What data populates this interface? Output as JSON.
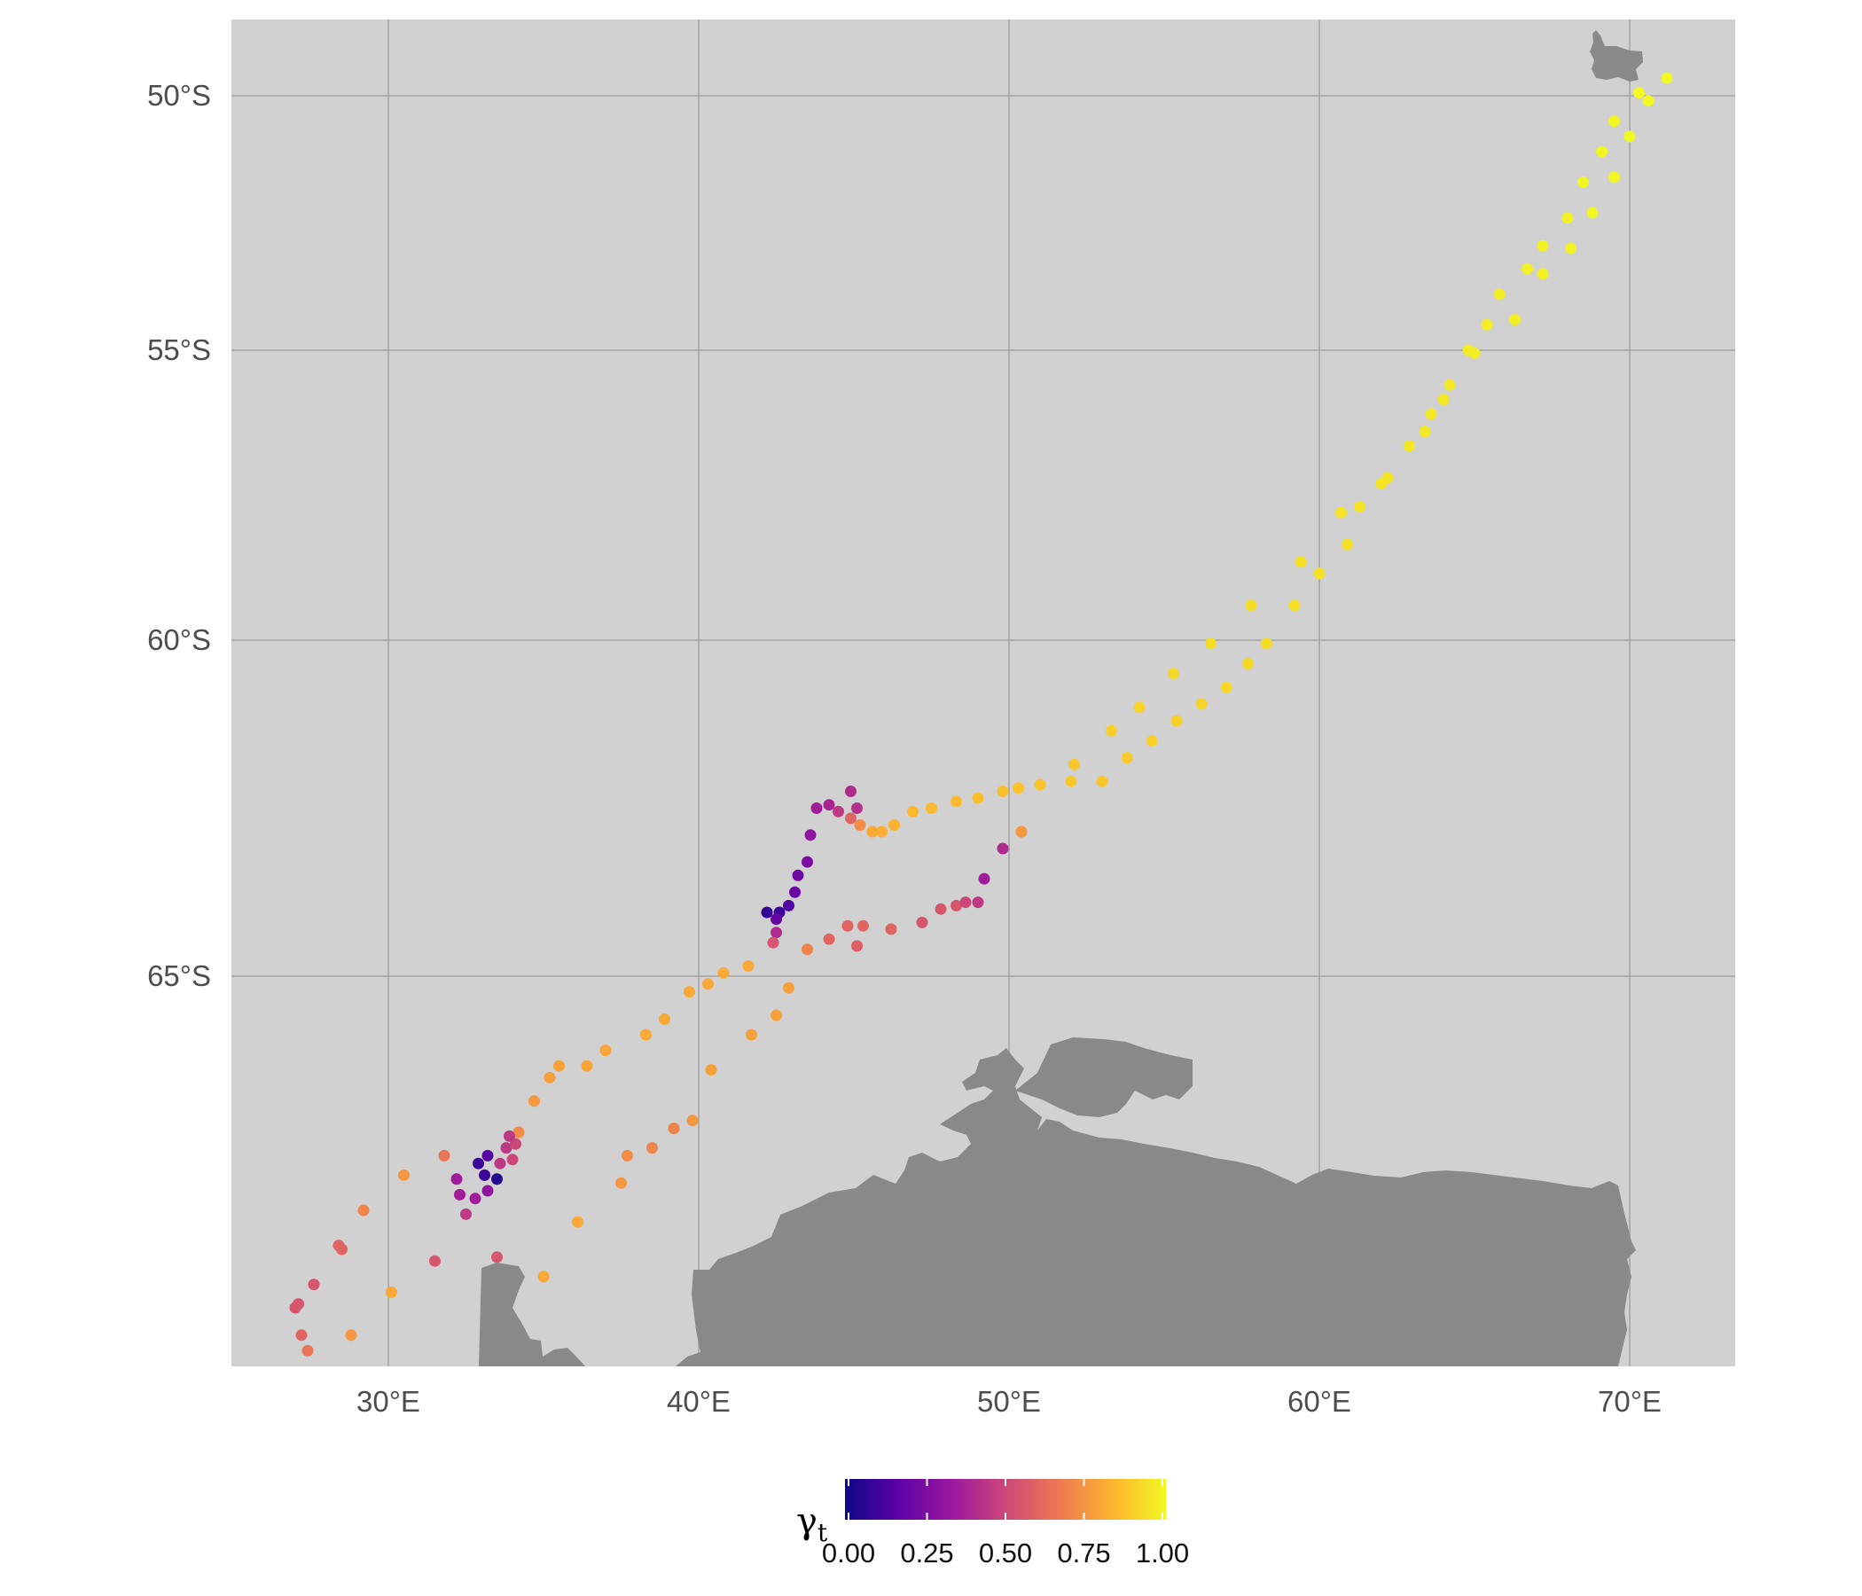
{
  "map": {
    "panel_background": "#d1d1d1",
    "land_color": "#898989",
    "grid_color": "#9c9c9c",
    "lon_ticks": [
      {
        "value": 30,
        "label": "30°E"
      },
      {
        "value": 40,
        "label": "40°E"
      },
      {
        "value": 50,
        "label": "50°E"
      },
      {
        "value": 60,
        "label": "60°E"
      },
      {
        "value": 70,
        "label": "70°E"
      }
    ],
    "lat_ticks": [
      {
        "value": -50,
        "label": "50°S"
      },
      {
        "value": -55,
        "label": "55°S"
      },
      {
        "value": -60,
        "label": "60°S"
      },
      {
        "value": -65,
        "label": "65°S"
      }
    ],
    "land_features": [
      "antarctica-coast",
      "kerguelen-islands"
    ]
  },
  "legend": {
    "title_symbol": "γ",
    "title_subscript": "t",
    "labels": [
      "0.00",
      "0.25",
      "0.50",
      "0.75",
      "1.00"
    ],
    "range": [
      0,
      1
    ],
    "palette": [
      "#0d0887",
      "#5c01a6",
      "#9c179e",
      "#cc4778",
      "#ed7953",
      "#fdb42f",
      "#f0f921"
    ]
  },
  "chart_data": {
    "type": "scatter",
    "xlabel": "",
    "ylabel": "",
    "color_variable": "γt",
    "points": [
      [
        71.2,
        -49.7,
        1.0
      ],
      [
        70.6,
        -50.1,
        1.0
      ],
      [
        70.3,
        -49.95,
        1.0
      ],
      [
        70.0,
        -50.8,
        1.0
      ],
      [
        69.5,
        -50.5,
        0.99
      ],
      [
        69.1,
        -51.1,
        0.99
      ],
      [
        69.5,
        -51.6,
        0.99
      ],
      [
        68.5,
        -51.7,
        0.99
      ],
      [
        68.8,
        -52.3,
        0.99
      ],
      [
        68.0,
        -52.4,
        0.98
      ],
      [
        68.1,
        -53.0,
        0.98
      ],
      [
        67.2,
        -52.95,
        0.98
      ],
      [
        66.7,
        -53.4,
        0.98
      ],
      [
        67.2,
        -53.5,
        0.98
      ],
      [
        65.8,
        -53.9,
        0.97
      ],
      [
        65.4,
        -54.5,
        0.97
      ],
      [
        66.3,
        -54.4,
        0.97
      ],
      [
        64.8,
        -55.0,
        0.97
      ],
      [
        65.0,
        -55.05,
        0.97
      ],
      [
        64.2,
        -55.6,
        0.96
      ],
      [
        64.0,
        -55.85,
        0.96
      ],
      [
        63.6,
        -56.1,
        0.96
      ],
      [
        63.4,
        -56.4,
        0.96
      ],
      [
        62.9,
        -56.65,
        0.96
      ],
      [
        62.2,
        -57.2,
        0.95
      ],
      [
        62.0,
        -57.3,
        0.95
      ],
      [
        61.3,
        -57.7,
        0.95
      ],
      [
        60.7,
        -57.8,
        0.95
      ],
      [
        60.9,
        -58.35,
        0.94
      ],
      [
        59.4,
        -58.65,
        0.94
      ],
      [
        60.0,
        -58.85,
        0.94
      ],
      [
        59.2,
        -59.4,
        0.94
      ],
      [
        57.8,
        -59.4,
        0.93
      ],
      [
        58.3,
        -60.05,
        0.93
      ],
      [
        56.5,
        -60.05,
        0.93
      ],
      [
        57.7,
        -60.35,
        0.92
      ],
      [
        55.3,
        -60.5,
        0.92
      ],
      [
        57.0,
        -60.7,
        0.92
      ],
      [
        56.2,
        -60.95,
        0.91
      ],
      [
        54.2,
        -61.0,
        0.91
      ],
      [
        55.4,
        -61.2,
        0.9
      ],
      [
        53.3,
        -61.35,
        0.9
      ],
      [
        54.6,
        -61.5,
        0.9
      ],
      [
        53.8,
        -61.75,
        0.89
      ],
      [
        52.1,
        -61.85,
        0.88
      ],
      [
        53.0,
        -62.1,
        0.88
      ],
      [
        52.0,
        -62.1,
        0.88
      ],
      [
        51.0,
        -62.15,
        0.87
      ],
      [
        50.3,
        -62.2,
        0.87
      ],
      [
        49.8,
        -62.25,
        0.86
      ],
      [
        49.0,
        -62.35,
        0.86
      ],
      [
        48.3,
        -62.4,
        0.85
      ],
      [
        47.5,
        -62.5,
        0.85
      ],
      [
        46.9,
        -62.55,
        0.84
      ],
      [
        46.3,
        -62.75,
        0.83
      ],
      [
        45.9,
        -62.85,
        0.82
      ],
      [
        45.6,
        -62.85,
        0.8
      ],
      [
        45.2,
        -62.75,
        0.72
      ],
      [
        44.9,
        -62.65,
        0.6
      ],
      [
        44.5,
        -62.55,
        0.45
      ],
      [
        44.2,
        -62.45,
        0.38
      ],
      [
        44.9,
        -62.25,
        0.4
      ],
      [
        45.1,
        -62.5,
        0.42
      ],
      [
        43.8,
        -62.5,
        0.35
      ],
      [
        43.6,
        -62.9,
        0.3
      ],
      [
        43.5,
        -63.3,
        0.25
      ],
      [
        43.2,
        -63.5,
        0.22
      ],
      [
        43.1,
        -63.75,
        0.2
      ],
      [
        42.9,
        -63.95,
        0.15
      ],
      [
        42.6,
        -64.05,
        0.1
      ],
      [
        42.2,
        -64.05,
        0.08
      ],
      [
        42.5,
        -64.15,
        0.2
      ],
      [
        42.5,
        -64.35,
        0.4
      ],
      [
        42.4,
        -64.5,
        0.55
      ],
      [
        43.5,
        -64.6,
        0.7
      ],
      [
        44.2,
        -64.45,
        0.6
      ],
      [
        45.1,
        -64.55,
        0.58
      ],
      [
        45.3,
        -64.25,
        0.6
      ],
      [
        44.8,
        -64.25,
        0.6
      ],
      [
        46.2,
        -64.3,
        0.6
      ],
      [
        47.2,
        -64.2,
        0.55
      ],
      [
        47.8,
        -64.0,
        0.55
      ],
      [
        48.3,
        -63.95,
        0.55
      ],
      [
        48.6,
        -63.9,
        0.5
      ],
      [
        49.0,
        -63.9,
        0.45
      ],
      [
        49.2,
        -63.55,
        0.35
      ],
      [
        49.8,
        -63.1,
        0.4
      ],
      [
        50.4,
        -62.85,
        0.75
      ],
      [
        41.6,
        -64.85,
        0.8
      ],
      [
        40.8,
        -64.95,
        0.8
      ],
      [
        40.3,
        -65.1,
        0.8
      ],
      [
        39.7,
        -65.2,
        0.8
      ],
      [
        38.9,
        -65.55,
        0.8
      ],
      [
        38.3,
        -65.75,
        0.8
      ],
      [
        37.0,
        -65.95,
        0.79
      ],
      [
        36.4,
        -66.15,
        0.79
      ],
      [
        35.5,
        -66.15,
        0.78
      ],
      [
        35.2,
        -66.3,
        0.77
      ],
      [
        34.7,
        -66.6,
        0.75
      ],
      [
        34.2,
        -67.0,
        0.72
      ],
      [
        42.9,
        -65.15,
        0.78
      ],
      [
        42.5,
        -65.5,
        0.78
      ],
      [
        41.7,
        -65.75,
        0.78
      ],
      [
        40.4,
        -66.2,
        0.78
      ],
      [
        39.8,
        -66.85,
        0.75
      ],
      [
        39.2,
        -66.95,
        0.7
      ],
      [
        38.5,
        -67.2,
        0.7
      ],
      [
        37.7,
        -67.3,
        0.72
      ],
      [
        37.5,
        -67.65,
        0.75
      ],
      [
        36.1,
        -68.15,
        0.8
      ],
      [
        35.0,
        -68.85,
        0.8
      ],
      [
        33.5,
        -68.6,
        0.55
      ],
      [
        31.5,
        -68.65,
        0.55
      ],
      [
        30.1,
        -69.05,
        0.8
      ],
      [
        28.8,
        -69.6,
        0.75
      ],
      [
        27.4,
        -69.8,
        0.65
      ],
      [
        27.2,
        -69.6,
        0.6
      ],
      [
        27.0,
        -69.25,
        0.55
      ],
      [
        27.1,
        -69.2,
        0.55
      ],
      [
        27.6,
        -68.95,
        0.55
      ],
      [
        28.4,
        -68.45,
        0.6
      ],
      [
        29.2,
        -68.0,
        0.7
      ],
      [
        30.5,
        -67.55,
        0.75
      ],
      [
        31.8,
        -67.3,
        0.65
      ],
      [
        32.2,
        -67.6,
        0.35
      ],
      [
        32.3,
        -67.8,
        0.35
      ],
      [
        32.8,
        -67.85,
        0.35
      ],
      [
        33.2,
        -67.75,
        0.3
      ],
      [
        32.9,
        -67.4,
        0.1
      ],
      [
        33.2,
        -67.3,
        0.15
      ],
      [
        33.1,
        -67.55,
        0.1
      ],
      [
        33.5,
        -67.6,
        0.05
      ],
      [
        33.6,
        -67.4,
        0.45
      ],
      [
        33.8,
        -67.2,
        0.45
      ],
      [
        34.1,
        -67.15,
        0.5
      ],
      [
        34.0,
        -67.35,
        0.5
      ],
      [
        33.9,
        -67.05,
        0.45
      ],
      [
        32.5,
        -68.05,
        0.45
      ],
      [
        28.5,
        -68.5,
        0.6
      ]
    ]
  }
}
